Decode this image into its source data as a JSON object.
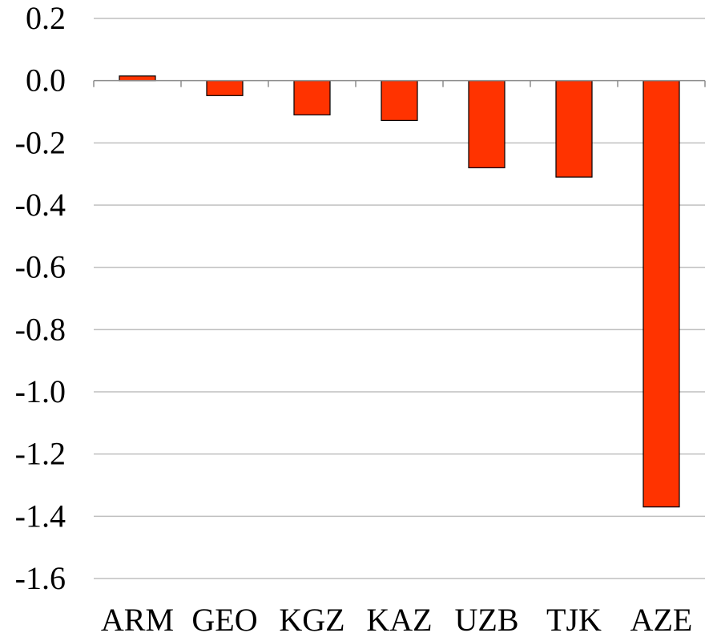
{
  "chart_data": {
    "type": "bar",
    "categories": [
      "ARM",
      "GEO",
      "KGZ",
      "KAZ",
      "UZB",
      "TJK",
      "AZE"
    ],
    "values": [
      0.015,
      -0.048,
      -0.11,
      -0.128,
      -0.28,
      -0.31,
      -1.37
    ],
    "title": "",
    "xlabel": "",
    "ylabel": "",
    "ylim": [
      -1.6,
      0.2
    ],
    "yticks": [
      0.2,
      0.0,
      -0.2,
      -0.4,
      -0.6,
      -0.8,
      -1.0,
      -1.2,
      -1.4,
      -1.6
    ],
    "ytick_labels": [
      "0.2",
      "0.0",
      "-0.2",
      "-0.4",
      "-0.6",
      "-0.8",
      "-1.0",
      "-1.2",
      "-1.4",
      "-1.6"
    ],
    "grid": true,
    "legend": "none",
    "bar_color": "#ff3300",
    "bar_edge_color": "#000000",
    "grid_color": "#bfbfbf"
  }
}
